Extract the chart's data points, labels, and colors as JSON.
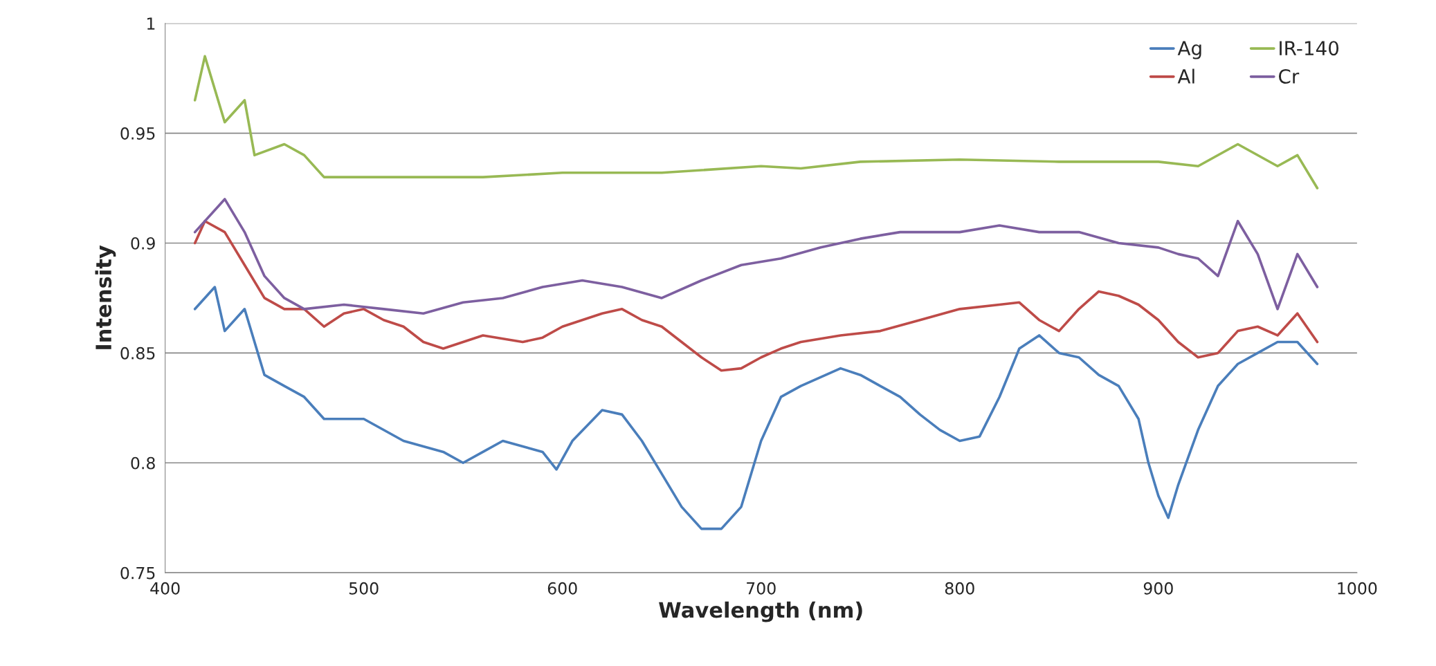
{
  "chart_data": {
    "type": "line",
    "xlabel": "Wavelength (nm)",
    "ylabel": "Intensity",
    "xlim": [
      400,
      1000
    ],
    "xticks": [
      400,
      500,
      600,
      700,
      800,
      900,
      1000
    ],
    "ylim": [
      0.75,
      1
    ],
    "yticks": [
      {
        "value": 0.75,
        "label": "0.75"
      },
      {
        "value": 0.8,
        "label": "0.8"
      },
      {
        "value": 0.85,
        "label": "0.85"
      },
      {
        "value": 0.9,
        "label": "0.9"
      },
      {
        "value": 0.95,
        "label": "0.95"
      },
      {
        "value": 1,
        "label": "1"
      }
    ],
    "grid": "y",
    "legend": "top right",
    "marker": "none",
    "line_style": "solid",
    "series": [
      {
        "name": "Ag",
        "color": "#4a7ebb",
        "x": [
          415,
          425,
          430,
          440,
          450,
          460,
          470,
          480,
          500,
          520,
          540,
          550,
          560,
          570,
          590,
          597,
          605,
          620,
          630,
          640,
          650,
          660,
          670,
          680,
          690,
          700,
          710,
          720,
          740,
          750,
          760,
          770,
          780,
          790,
          800,
          810,
          820,
          830,
          840,
          850,
          860,
          870,
          880,
          890,
          895,
          900,
          905,
          910,
          920,
          930,
          940,
          950,
          960,
          970,
          980
        ],
        "values": [
          0.87,
          0.88,
          0.86,
          0.87,
          0.84,
          0.835,
          0.83,
          0.82,
          0.82,
          0.81,
          0.805,
          0.8,
          0.805,
          0.81,
          0.805,
          0.797,
          0.81,
          0.824,
          0.822,
          0.81,
          0.795,
          0.78,
          0.77,
          0.77,
          0.78,
          0.81,
          0.83,
          0.835,
          0.843,
          0.84,
          0.835,
          0.83,
          0.822,
          0.815,
          0.81,
          0.812,
          0.83,
          0.852,
          0.858,
          0.85,
          0.848,
          0.84,
          0.835,
          0.82,
          0.8,
          0.785,
          0.775,
          0.79,
          0.815,
          0.835,
          0.845,
          0.85,
          0.855,
          0.855,
          0.845
        ]
      },
      {
        "name": "Al",
        "color": "#be4b48",
        "x": [
          415,
          420,
          430,
          440,
          450,
          460,
          470,
          480,
          490,
          500,
          510,
          520,
          530,
          540,
          550,
          560,
          580,
          590,
          600,
          620,
          630,
          640,
          650,
          660,
          670,
          680,
          690,
          700,
          710,
          720,
          740,
          760,
          780,
          800,
          820,
          830,
          840,
          850,
          860,
          870,
          880,
          890,
          900,
          910,
          920,
          930,
          940,
          950,
          960,
          970,
          980
        ],
        "values": [
          0.9,
          0.91,
          0.905,
          0.89,
          0.875,
          0.87,
          0.87,
          0.862,
          0.868,
          0.87,
          0.865,
          0.862,
          0.855,
          0.852,
          0.855,
          0.858,
          0.855,
          0.857,
          0.862,
          0.868,
          0.87,
          0.865,
          0.862,
          0.855,
          0.848,
          0.842,
          0.843,
          0.848,
          0.852,
          0.855,
          0.858,
          0.86,
          0.865,
          0.87,
          0.872,
          0.873,
          0.865,
          0.86,
          0.87,
          0.878,
          0.876,
          0.872,
          0.865,
          0.855,
          0.848,
          0.85,
          0.86,
          0.862,
          0.858,
          0.868,
          0.855
        ]
      },
      {
        "name": "IR-140",
        "color": "#98b954",
        "x": [
          415,
          420,
          425,
          430,
          440,
          445,
          460,
          470,
          480,
          500,
          520,
          540,
          560,
          600,
          650,
          700,
          720,
          750,
          800,
          850,
          900,
          920,
          940,
          960,
          970,
          980
        ],
        "values": [
          0.965,
          0.985,
          0.97,
          0.955,
          0.965,
          0.94,
          0.945,
          0.94,
          0.93,
          0.93,
          0.93,
          0.93,
          0.93,
          0.932,
          0.932,
          0.935,
          0.934,
          0.937,
          0.938,
          0.937,
          0.937,
          0.935,
          0.945,
          0.935,
          0.94,
          0.925
        ]
      },
      {
        "name": "Cr",
        "color": "#7d5fa0",
        "x": [
          415,
          430,
          440,
          450,
          460,
          470,
          490,
          510,
          530,
          550,
          570,
          590,
          610,
          630,
          650,
          670,
          690,
          710,
          730,
          750,
          770,
          800,
          820,
          840,
          860,
          880,
          900,
          910,
          920,
          930,
          940,
          950,
          960,
          970,
          980
        ],
        "values": [
          0.905,
          0.92,
          0.905,
          0.885,
          0.875,
          0.87,
          0.872,
          0.87,
          0.868,
          0.873,
          0.875,
          0.88,
          0.883,
          0.88,
          0.875,
          0.883,
          0.89,
          0.893,
          0.898,
          0.902,
          0.905,
          0.905,
          0.908,
          0.905,
          0.905,
          0.9,
          0.898,
          0.895,
          0.893,
          0.885,
          0.91,
          0.895,
          0.87,
          0.895,
          0.88
        ]
      }
    ]
  }
}
